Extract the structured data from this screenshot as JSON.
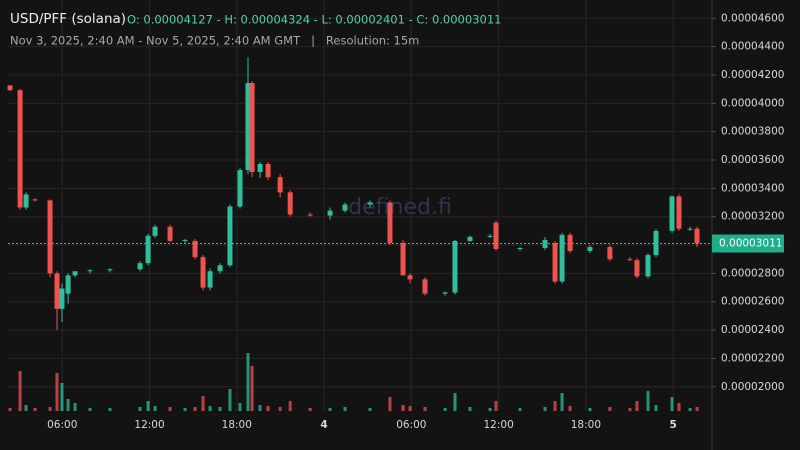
{
  "chart_data": {
    "type": "candlestick",
    "title": "USD/PFF (solana)",
    "summary": "O: 0.00004127 - H: 0.00004324 - L: 0.00002401 - C: 0.00003011",
    "subtitle": "Nov 3, 2025, 2:40 AM - Nov 5, 2025, 2:40 AM GMT   |   Resolution: 15m",
    "watermark": "defined.fi",
    "up_color": "#2fbf9c",
    "down_color": "#ef5350",
    "grid": true,
    "ylim": [
      1.829e-05,
      4.729e-05
    ],
    "yticks": [
      {
        "value": 2e-05,
        "label": "0.00002000"
      },
      {
        "value": 2.2e-05,
        "label": "0.00002200"
      },
      {
        "value": 2.4e-05,
        "label": "0.00002400"
      },
      {
        "value": 2.6e-05,
        "label": "0.00002600"
      },
      {
        "value": 2.8e-05,
        "label": "0.00002800"
      },
      {
        "value": 3e-05,
        "label": "0.00003000"
      },
      {
        "value": 3.2e-05,
        "label": "0.00003200"
      },
      {
        "value": 3.4e-05,
        "label": "0.00003400"
      },
      {
        "value": 3.6e-05,
        "label": "0.00003600"
      },
      {
        "value": 3.8e-05,
        "label": "0.00003800"
      },
      {
        "value": 4e-05,
        "label": "0.00004000"
      },
      {
        "value": 4.2e-05,
        "label": "0.00004200"
      },
      {
        "value": 4.4e-05,
        "label": "0.00004400"
      },
      {
        "value": 4.6e-05,
        "label": "0.00004600"
      }
    ],
    "xlim": [
      -0.4,
      48
    ],
    "xticks": [
      {
        "value": 3.33,
        "label": "06:00"
      },
      {
        "value": 9.33,
        "label": "12:00"
      },
      {
        "value": 15.33,
        "label": "18:00"
      },
      {
        "value": 21.33,
        "label": "4"
      },
      {
        "value": 27.33,
        "label": "06:00"
      },
      {
        "value": 33.33,
        "label": "12:00"
      },
      {
        "value": 39.33,
        "label": "18:00"
      },
      {
        "value": 45.33,
        "label": "5"
      }
    ],
    "vlim": [
      0,
      100
    ],
    "last_price": {
      "value": 3.011e-05,
      "label": "0.00003011"
    },
    "candles": {
      "x": [
        -0.26,
        0.43,
        0.84,
        1.46,
        2.49,
        2.97,
        3.31,
        3.73,
        4.21,
        5.24,
        6.61,
        8.68,
        9.23,
        9.71,
        10.74,
        11.77,
        12.46,
        13.01,
        13.49,
        14.18,
        14.86,
        15.55,
        16.1,
        16.38,
        16.93,
        17.48,
        18.31,
        19.0,
        20.37,
        21.74,
        22.77,
        24.49,
        25.86,
        26.76,
        27.24,
        28.27,
        29.65,
        30.33,
        31.36,
        32.74,
        33.15,
        34.8,
        36.52,
        37.21,
        37.69,
        38.24,
        39.61,
        40.98,
        42.36,
        42.84,
        43.6,
        44.15,
        45.25,
        45.73,
        46.49,
        46.97
      ],
      "open": [
        4.127e-05,
        4.093e-05,
        3.265e-05,
        3.322e-05,
        3.315e-05,
        2.8e-05,
        2.55e-05,
        2.657e-05,
        2.786e-05,
        2.815e-05,
        2.822e-05,
        2.829e-05,
        2.872e-05,
        3.065e-05,
        3.129e-05,
        3.029e-05,
        3.029e-05,
        2.915e-05,
        2.7e-05,
        2.815e-05,
        2.857e-05,
        3.272e-05,
        3.529e-05,
        4.143e-05,
        3.515e-05,
        3.572e-05,
        3.479e-05,
        3.372e-05,
        3.215e-05,
        3.208e-05,
        3.243e-05,
        3.286e-05,
        3.3e-05,
        3.015e-05,
        2.786e-05,
        2.758e-05,
        2.657e-05,
        2.665e-05,
        3.029e-05,
        3.058e-05,
        3.158e-05,
        2.972e-05,
        2.979e-05,
        3.015e-05,
        2.743e-05,
        3.072e-05,
        2.958e-05,
        2.986e-05,
        2.9e-05,
        2.893e-05,
        2.779e-05,
        2.929e-05,
        3.1e-05,
        3.343e-05,
        3.115e-05,
        3.115e-05
      ],
      "high": [
        4.127e-05,
        4.1e-05,
        3.372e-05,
        3.329e-05,
        3.322e-05,
        2.815e-05,
        2.729e-05,
        2.8e-05,
        2.815e-05,
        2.829e-05,
        2.836e-05,
        2.886e-05,
        3.079e-05,
        3.143e-05,
        3.143e-05,
        3.043e-05,
        3.043e-05,
        2.929e-05,
        2.836e-05,
        2.872e-05,
        3.286e-05,
        3.543e-05,
        4.324e-05,
        4.158e-05,
        3.586e-05,
        3.586e-05,
        3.5e-05,
        3.386e-05,
        3.229e-05,
        3.265e-05,
        3.3e-05,
        3.315e-05,
        3.315e-05,
        3.036e-05,
        2.8e-05,
        2.772e-05,
        2.672e-05,
        3.036e-05,
        3.065e-05,
        3.079e-05,
        3.172e-05,
        2.986e-05,
        3.058e-05,
        3.029e-05,
        3.086e-05,
        3.086e-05,
        3e-05,
        3e-05,
        2.915e-05,
        2.907e-05,
        2.943e-05,
        3.115e-05,
        3.35e-05,
        3.357e-05,
        3.129e-05,
        3.129e-05
      ],
      "low": [
        4.086e-05,
        3.25e-05,
        3.25e-05,
        3.308e-05,
        2.772e-05,
        2.401e-05,
        2.457e-05,
        2.586e-05,
        2.772e-05,
        2.8e-05,
        2.807e-05,
        2.815e-05,
        2.857e-05,
        3.05e-05,
        3.022e-05,
        3.015e-05,
        2.9e-05,
        2.679e-05,
        2.679e-05,
        2.8e-05,
        2.843e-05,
        3.257e-05,
        3.5e-05,
        3.479e-05,
        3.472e-05,
        3.458e-05,
        3.336e-05,
        3.2e-05,
        3.2e-05,
        3.179e-05,
        3.229e-05,
        3.265e-05,
        3e-05,
        2.786e-05,
        2.729e-05,
        2.643e-05,
        2.643e-05,
        2.65e-05,
        3.022e-05,
        3.05e-05,
        2.958e-05,
        2.958e-05,
        2.965e-05,
        2.729e-05,
        2.729e-05,
        2.943e-05,
        2.943e-05,
        2.886e-05,
        2.886e-05,
        2.765e-05,
        2.765e-05,
        2.915e-05,
        3.086e-05,
        3.1e-05,
        3.1e-05,
        2.986e-05
      ],
      "close": [
        4.093e-05,
        3.265e-05,
        3.357e-05,
        3.315e-05,
        2.8e-05,
        2.55e-05,
        2.693e-05,
        2.786e-05,
        2.815e-05,
        2.822e-05,
        2.829e-05,
        2.872e-05,
        3.065e-05,
        3.129e-05,
        3.029e-05,
        3.036e-05,
        2.915e-05,
        2.7e-05,
        2.815e-05,
        2.857e-05,
        3.272e-05,
        3.529e-05,
        4.143e-05,
        3.515e-05,
        3.572e-05,
        3.479e-05,
        3.372e-05,
        3.215e-05,
        3.208e-05,
        3.243e-05,
        3.286e-05,
        3.3e-05,
        3.015e-05,
        2.786e-05,
        2.758e-05,
        2.657e-05,
        2.665e-05,
        3.029e-05,
        3.058e-05,
        3.065e-05,
        2.972e-05,
        2.979e-05,
        3.036e-05,
        2.743e-05,
        3.072e-05,
        2.958e-05,
        2.986e-05,
        2.9e-05,
        2.893e-05,
        2.779e-05,
        2.929e-05,
        3.1e-05,
        3.343e-05,
        3.115e-05,
        3.115e-05,
        3.011e-05
      ],
      "volume": [
        3,
        40,
        6,
        3,
        4,
        38,
        28,
        12,
        8,
        3,
        3,
        4,
        10,
        5,
        4,
        3,
        4,
        15,
        5,
        4,
        22,
        8,
        58,
        45,
        6,
        5,
        4,
        10,
        3,
        3,
        4,
        3,
        14,
        6,
        5,
        4,
        3,
        18,
        4,
        3,
        10,
        3,
        4,
        10,
        18,
        5,
        3,
        4,
        3,
        10,
        20,
        6,
        14,
        8,
        3,
        4
      ]
    }
  }
}
